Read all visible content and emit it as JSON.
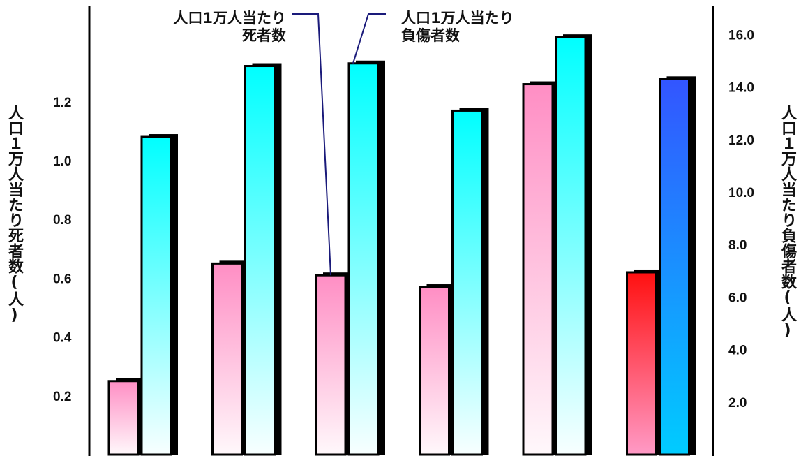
{
  "chart_data": {
    "type": "bar",
    "series": [
      {
        "name": "人口1万人当たり死者数",
        "axis": "left",
        "values": [
          0.25,
          0.65,
          0.61,
          0.57,
          1.26,
          0.62
        ]
      },
      {
        "name": "人口1万人当たり負傷者数",
        "axis": "right",
        "values": [
          12.1,
          14.8,
          14.9,
          13.1,
          15.9,
          14.3
        ]
      }
    ],
    "highlight_index": 5,
    "left_axis": {
      "label": "人口１万人当たり死者数(人)",
      "ylim": [
        0,
        1.36
      ],
      "ticks": [
        "0.2",
        "0.4",
        "0.6",
        "0.8",
        "1.0",
        "1.2"
      ]
    },
    "right_axis": {
      "label": "人口１万人当たり負傷者数(人)",
      "ylim": [
        0,
        17.1
      ],
      "ticks": [
        "2.0",
        "4.0",
        "6.0",
        "8.0",
        "10.0",
        "12.0",
        "14.0",
        "16.0"
      ]
    },
    "callouts": {
      "deaths": [
        "人口1万人当たり",
        "死者数"
      ],
      "injuries": [
        "人口1万人当たり",
        "負傷者数"
      ]
    },
    "colors": {
      "death_top": "#ff8ec4",
      "death_bottom": "#fff8fb",
      "injury_top": "#00ffff",
      "injury_bottom": "#f8ffff",
      "highlight_death_top": "#ff1010",
      "highlight_death_bottom": "#ff9ac6",
      "highlight_injury_top": "#3355ff",
      "highlight_injury_bottom": "#00ccff",
      "callout_line": "#1a1a7a"
    },
    "grid": false
  }
}
